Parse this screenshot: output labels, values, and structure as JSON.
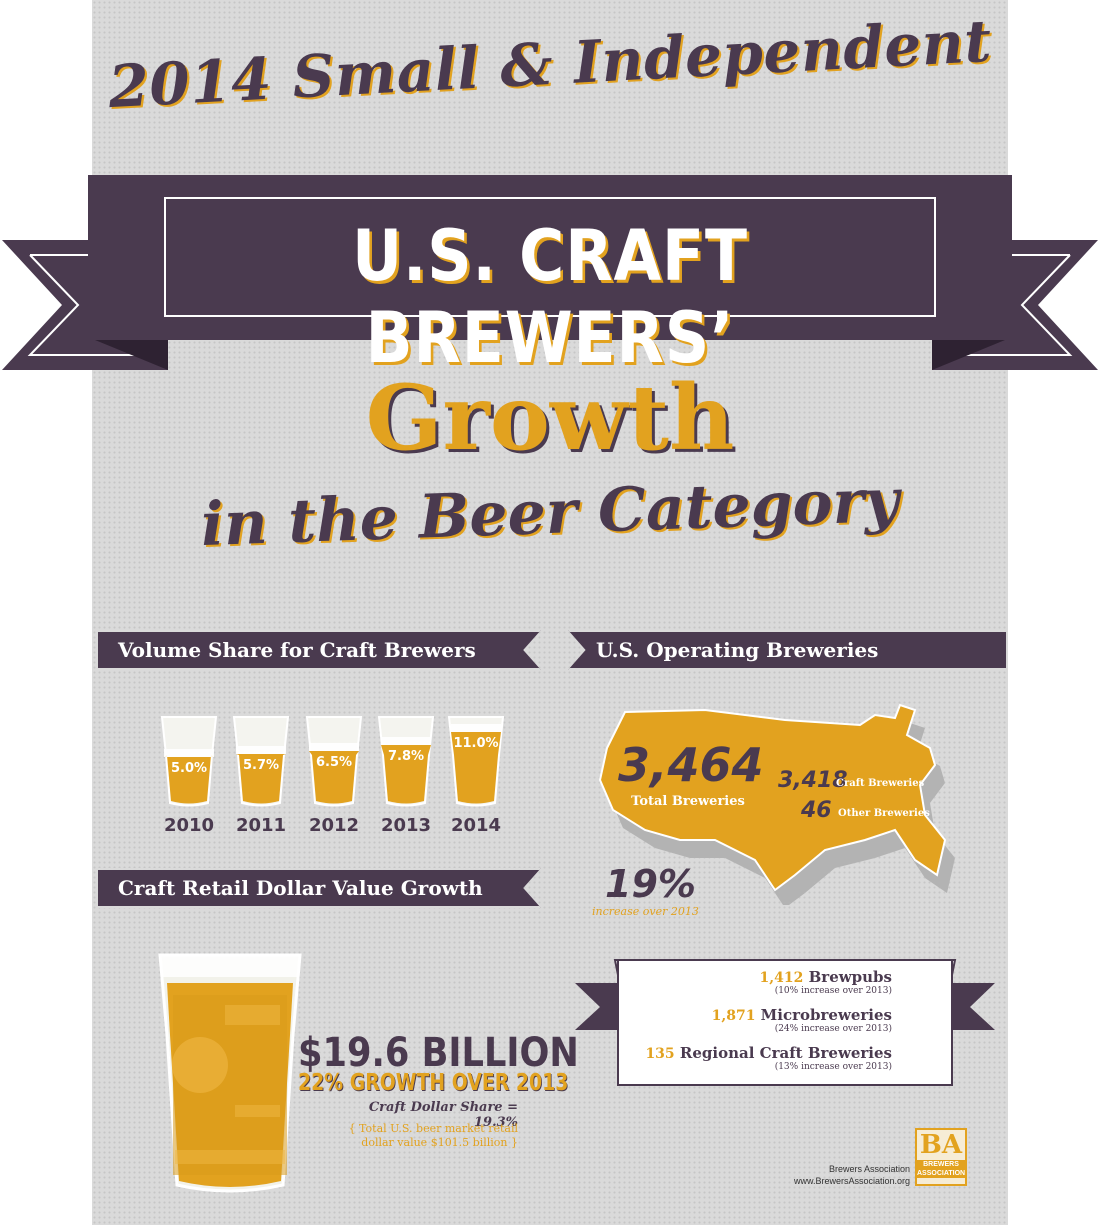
{
  "header": {
    "top_title": "2014 Small & Independent",
    "banner_title": "U.S. CRAFT BREWERS’",
    "growth_title": "Growth",
    "sub_title": "in the Beer Category"
  },
  "volume_share": {
    "title": "Volume Share for Craft Brewers",
    "glasses": [
      {
        "year": "2010",
        "share": "5.0%",
        "fill": 0.05
      },
      {
        "year": "2011",
        "share": "5.7%",
        "fill": 0.057
      },
      {
        "year": "2012",
        "share": "6.5%",
        "fill": 0.065
      },
      {
        "year": "2013",
        "share": "7.8%",
        "fill": 0.078
      },
      {
        "year": "2014",
        "share": "11.0%",
        "fill": 0.11
      }
    ]
  },
  "operating_breweries": {
    "title": "U.S. Operating Breweries",
    "total": "3,464",
    "total_label": "Total Breweries",
    "craft_count": "3,418",
    "craft_label": "Craft Breweries",
    "other_count": "46",
    "other_label": "Other Breweries",
    "increase_pct": "19%",
    "increase_label": "increase over 2013"
  },
  "brewery_types": [
    {
      "count": "1,412",
      "name": "Brewpubs",
      "note": "(10% increase over 2013)"
    },
    {
      "count": "1,871",
      "name": "Microbreweries",
      "note": "(24% increase over 2013)"
    },
    {
      "count": "135",
      "name": "Regional Craft Breweries",
      "note": "(13% increase over 2013)"
    }
  ],
  "dollar_value": {
    "title": "Craft Retail Dollar Value Growth",
    "amount": "$19.6 BILLION",
    "growth": "22% GROWTH OVER 2013",
    "share": "Craft Dollar Share = 19.3%",
    "note_line1": "{ Total U.S. beer market retail",
    "note_line2": "dollar value $101.5 billion }"
  },
  "footer": {
    "org_name": "Brewers Association",
    "org_url": "www.BrewersAssociation.org",
    "logo_mark": "BA",
    "logo_text": "BREWERS ASSOCIATION"
  },
  "colors": {
    "purple": "#4a3a4f",
    "gold": "#e2a21f",
    "background": "#dadada"
  }
}
